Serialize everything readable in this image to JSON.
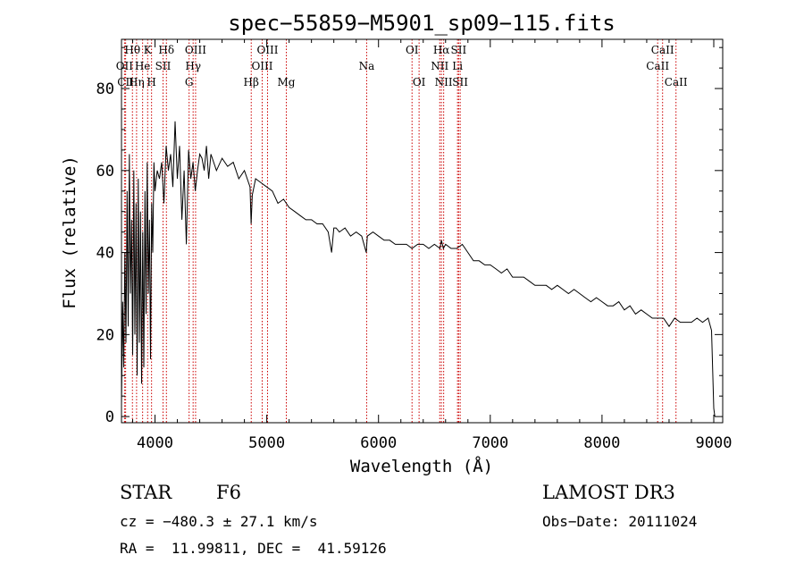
{
  "chart_data": {
    "type": "line",
    "title": "spec−55859−M5901_sp09−115.fits",
    "xlabel": "Wavelength (Å)",
    "ylabel": "Flux (relative)",
    "xlim": [
      3700,
      9080
    ],
    "ylim": [
      -1.5,
      92
    ],
    "x_ticks": [
      4000,
      5000,
      6000,
      7000,
      8000,
      9000
    ],
    "y_ticks": [
      0,
      20,
      40,
      60,
      80
    ],
    "grid": false,
    "series": [
      {
        "name": "spectrum",
        "color": "#000000",
        "x": [
          3700,
          3710,
          3720,
          3730,
          3740,
          3750,
          3760,
          3770,
          3780,
          3790,
          3800,
          3810,
          3820,
          3830,
          3840,
          3850,
          3860,
          3870,
          3880,
          3890,
          3900,
          3910,
          3920,
          3930,
          3940,
          3950,
          3960,
          3970,
          3980,
          3990,
          4000,
          4020,
          4040,
          4060,
          4080,
          4100,
          4120,
          4140,
          4160,
          4180,
          4200,
          4220,
          4240,
          4260,
          4280,
          4300,
          4320,
          4340,
          4360,
          4380,
          4400,
          4420,
          4440,
          4460,
          4480,
          4500,
          4550,
          4600,
          4650,
          4700,
          4750,
          4800,
          4850,
          4860,
          4870,
          4900,
          4950,
          5000,
          5050,
          5100,
          5150,
          5200,
          5250,
          5300,
          5350,
          5400,
          5450,
          5500,
          5550,
          5580,
          5600,
          5620,
          5650,
          5700,
          5750,
          5800,
          5850,
          5890,
          5900,
          5950,
          6000,
          6050,
          6100,
          6150,
          6200,
          6250,
          6300,
          6350,
          6400,
          6450,
          6500,
          6550,
          6563,
          6580,
          6600,
          6650,
          6700,
          6750,
          6800,
          6850,
          6900,
          6950,
          7000,
          7050,
          7100,
          7150,
          7200,
          7250,
          7300,
          7350,
          7400,
          7450,
          7500,
          7550,
          7600,
          7650,
          7700,
          7750,
          7800,
          7850,
          7900,
          7950,
          8000,
          8050,
          8100,
          8150,
          8200,
          8250,
          8300,
          8350,
          8400,
          8450,
          8500,
          8550,
          8600,
          8650,
          8700,
          8750,
          8800,
          8850,
          8900,
          8950,
          8980,
          9000,
          9010
        ],
        "y": [
          3,
          28,
          12,
          40,
          18,
          55,
          22,
          64,
          30,
          48,
          15,
          60,
          20,
          52,
          10,
          58,
          18,
          50,
          8,
          45,
          12,
          55,
          25,
          62,
          30,
          48,
          14,
          52,
          40,
          62,
          55,
          60,
          58,
          62,
          52,
          66,
          60,
          64,
          56,
          72,
          58,
          66,
          48,
          60,
          42,
          65,
          58,
          62,
          55,
          60,
          64,
          63,
          60,
          66,
          58,
          64,
          60,
          63,
          61,
          62,
          58,
          60,
          56,
          47,
          54,
          58,
          57,
          56,
          55,
          52,
          53,
          51,
          50,
          49,
          48,
          48,
          47,
          47,
          45,
          40,
          46,
          46,
          45,
          46,
          44,
          45,
          44,
          40,
          44,
          45,
          44,
          43,
          43,
          42,
          42,
          42,
          41,
          42,
          42,
          41,
          42,
          41,
          43,
          41,
          42,
          41,
          41,
          42,
          40,
          38,
          38,
          37,
          37,
          36,
          35,
          36,
          34,
          34,
          34,
          33,
          32,
          32,
          32,
          31,
          32,
          31,
          30,
          31,
          30,
          29,
          28,
          29,
          28,
          27,
          27,
          28,
          26,
          27,
          25,
          26,
          25,
          24,
          24,
          24,
          22,
          24,
          23,
          23,
          23,
          24,
          23,
          24,
          21,
          2,
          0
        ]
      }
    ],
    "annotations": [
      {
        "label": "Hθ",
        "wavelength": 3798,
        "row": 1
      },
      {
        "label": "Hη",
        "wavelength": 3835,
        "row": 3
      },
      {
        "label": "He",
        "wavelength": 3889,
        "row": 2
      },
      {
        "label": "K",
        "wavelength": 3934,
        "row": 1
      },
      {
        "label": "H",
        "wavelength": 3969,
        "row": 3
      },
      {
        "label": "Hδ",
        "wavelength": 4102,
        "row": 1
      },
      {
        "label": "G",
        "wavelength": 4305,
        "row": 3
      },
      {
        "label": "Hγ",
        "wavelength": 4341,
        "row": 2
      },
      {
        "label": "OIII",
        "wavelength": 4363,
        "row": 1
      },
      {
        "label": "CII",
        "wavelength": 3737,
        "row": 3
      },
      {
        "label": "OII",
        "wavelength": 3727,
        "row": 2
      },
      {
        "label": "SII",
        "wavelength": 4072,
        "row": 2
      },
      {
        "label": "Hβ",
        "wavelength": 4861,
        "row": 3
      },
      {
        "label": "OIII",
        "wavelength": 4959,
        "row": 2
      },
      {
        "label": "OIII",
        "wavelength": 5007,
        "row": 1
      },
      {
        "label": "Mg",
        "wavelength": 5175,
        "row": 3
      },
      {
        "label": "Na",
        "wavelength": 5894,
        "row": 2
      },
      {
        "label": "OI",
        "wavelength": 6300,
        "row": 1
      },
      {
        "label": "OI",
        "wavelength": 6363,
        "row": 3
      },
      {
        "label": "NII",
        "wavelength": 6548,
        "row": 2
      },
      {
        "label": "Hα",
        "wavelength": 6563,
        "row": 1
      },
      {
        "label": "NII",
        "wavelength": 6583,
        "row": 3
      },
      {
        "label": "Li",
        "wavelength": 6707,
        "row": 2
      },
      {
        "label": "SII",
        "wavelength": 6717,
        "row": 1
      },
      {
        "label": "SII",
        "wavelength": 6731,
        "row": 3
      },
      {
        "label": "CaII",
        "wavelength": 8498,
        "row": 2
      },
      {
        "label": "CaII",
        "wavelength": 8542,
        "row": 1
      },
      {
        "label": "CaII",
        "wavelength": 8662,
        "row": 3
      }
    ]
  },
  "info": {
    "class": "STAR",
    "subclass": "F6",
    "survey": "LAMOST DR3",
    "cz": "cz = −480.3 ± 27.1 km/s",
    "obs_date": "Obs−Date: 20111024",
    "coords": "RA =  11.99811, DEC =  41.59126"
  },
  "colors": {
    "axis": "#000000",
    "spectrum": "#000000",
    "line_marker": "#cc0000"
  }
}
